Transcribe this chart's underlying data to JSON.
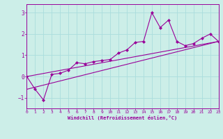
{
  "background_color": "#cceee8",
  "grid_color": "#aadddd",
  "line_color": "#990099",
  "marker_color": "#990099",
  "xlabel": "Windchill (Refroidissement éolien,°C)",
  "xlim": [
    0,
    23
  ],
  "ylim": [
    -1.5,
    3.4
  ],
  "yticks": [
    -1,
    0,
    1,
    2,
    3
  ],
  "xticks": [
    0,
    1,
    2,
    3,
    4,
    5,
    6,
    7,
    8,
    9,
    10,
    11,
    12,
    13,
    14,
    15,
    16,
    17,
    18,
    19,
    20,
    21,
    22,
    23
  ],
  "main_x": [
    0,
    1,
    2,
    3,
    4,
    5,
    6,
    7,
    8,
    9,
    10,
    11,
    12,
    13,
    14,
    15,
    16,
    17,
    18,
    19,
    20,
    21,
    22,
    23
  ],
  "main_y": [
    0.0,
    -0.6,
    -1.1,
    0.1,
    0.15,
    0.3,
    0.65,
    0.6,
    0.7,
    0.75,
    0.8,
    1.1,
    1.25,
    1.6,
    1.65,
    3.0,
    2.3,
    2.65,
    1.65,
    1.45,
    1.55,
    1.8,
    2.0,
    1.65
  ],
  "line2_x": [
    0,
    23
  ],
  "line2_y": [
    0.0,
    1.65
  ],
  "line3_x": [
    0,
    23
  ],
  "line3_y": [
    -0.6,
    1.65
  ]
}
